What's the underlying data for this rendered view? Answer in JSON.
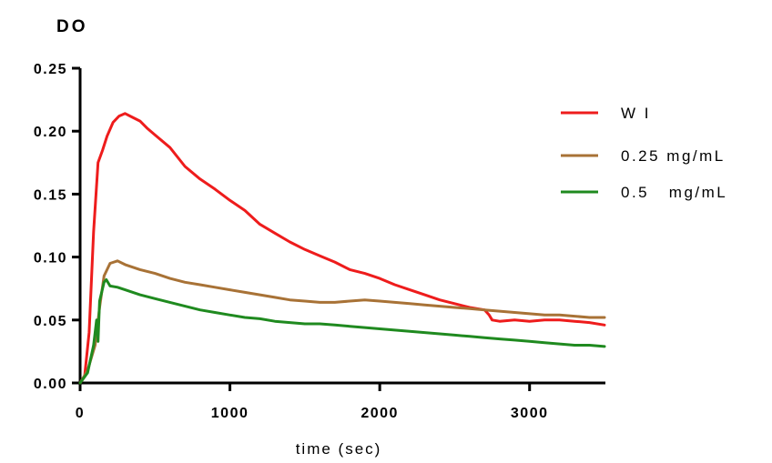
{
  "chart_data": {
    "type": "line",
    "title": "",
    "ylabel": "DO",
    "xlabel": "time (sec)",
    "xlim": [
      0,
      3500
    ],
    "ylim": [
      0,
      0.25
    ],
    "xticks": [
      0,
      1000,
      2000,
      3000
    ],
    "xtick_labels": [
      "0",
      "1000",
      "2000",
      "3000"
    ],
    "yticks": [
      0,
      0.05,
      0.1,
      0.15,
      0.2,
      0.25
    ],
    "ytick_labels": [
      "0.00",
      "0.05",
      "0.10",
      "0.15",
      "0.20",
      "0.25"
    ],
    "grid": false,
    "legend_position": "top-right",
    "series": [
      {
        "name": "W I",
        "color": "#ee1c1c",
        "points": [
          [
            0,
            0
          ],
          [
            30,
            0.005
          ],
          [
            60,
            0.04
          ],
          [
            90,
            0.12
          ],
          [
            120,
            0.175
          ],
          [
            150,
            0.185
          ],
          [
            180,
            0.196
          ],
          [
            220,
            0.207
          ],
          [
            260,
            0.212
          ],
          [
            300,
            0.214
          ],
          [
            350,
            0.211
          ],
          [
            400,
            0.208
          ],
          [
            450,
            0.202
          ],
          [
            500,
            0.197
          ],
          [
            600,
            0.187
          ],
          [
            700,
            0.172
          ],
          [
            800,
            0.162
          ],
          [
            900,
            0.154
          ],
          [
            1000,
            0.145
          ],
          [
            1100,
            0.137
          ],
          [
            1200,
            0.126
          ],
          [
            1300,
            0.119
          ],
          [
            1400,
            0.112
          ],
          [
            1500,
            0.106
          ],
          [
            1600,
            0.101
          ],
          [
            1700,
            0.096
          ],
          [
            1800,
            0.09
          ],
          [
            1900,
            0.087
          ],
          [
            2000,
            0.083
          ],
          [
            2100,
            0.078
          ],
          [
            2200,
            0.074
          ],
          [
            2300,
            0.07
          ],
          [
            2400,
            0.066
          ],
          [
            2500,
            0.063
          ],
          [
            2600,
            0.06
          ],
          [
            2700,
            0.058
          ],
          [
            2730,
            0.054
          ],
          [
            2750,
            0.05
          ],
          [
            2800,
            0.049
          ],
          [
            2900,
            0.05
          ],
          [
            3000,
            0.049
          ],
          [
            3100,
            0.05
          ],
          [
            3200,
            0.05
          ],
          [
            3300,
            0.049
          ],
          [
            3400,
            0.048
          ],
          [
            3500,
            0.046
          ]
        ]
      },
      {
        "name": "0.25 mg/mL",
        "color": "#a87236",
        "points": [
          [
            0,
            0
          ],
          [
            50,
            0.01
          ],
          [
            100,
            0.03
          ],
          [
            130,
            0.06
          ],
          [
            160,
            0.085
          ],
          [
            200,
            0.095
          ],
          [
            250,
            0.097
          ],
          [
            300,
            0.094
          ],
          [
            400,
            0.09
          ],
          [
            500,
            0.087
          ],
          [
            600,
            0.083
          ],
          [
            700,
            0.08
          ],
          [
            800,
            0.078
          ],
          [
            900,
            0.076
          ],
          [
            1000,
            0.074
          ],
          [
            1100,
            0.072
          ],
          [
            1200,
            0.07
          ],
          [
            1300,
            0.068
          ],
          [
            1400,
            0.066
          ],
          [
            1500,
            0.065
          ],
          [
            1600,
            0.064
          ],
          [
            1700,
            0.064
          ],
          [
            1800,
            0.065
          ],
          [
            1900,
            0.066
          ],
          [
            2000,
            0.065
          ],
          [
            2100,
            0.064
          ],
          [
            2200,
            0.063
          ],
          [
            2300,
            0.062
          ],
          [
            2400,
            0.061
          ],
          [
            2500,
            0.06
          ],
          [
            2600,
            0.059
          ],
          [
            2700,
            0.058
          ],
          [
            2800,
            0.057
          ],
          [
            2900,
            0.056
          ],
          [
            3000,
            0.055
          ],
          [
            3100,
            0.054
          ],
          [
            3200,
            0.054
          ],
          [
            3300,
            0.053
          ],
          [
            3400,
            0.052
          ],
          [
            3500,
            0.052
          ]
        ]
      },
      {
        "name": "0.5   mg/mL",
        "color": "#1f8a1f",
        "points": [
          [
            0,
            0
          ],
          [
            50,
            0.008
          ],
          [
            90,
            0.03
          ],
          [
            110,
            0.05
          ],
          [
            120,
            0.033
          ],
          [
            130,
            0.065
          ],
          [
            160,
            0.08
          ],
          [
            175,
            0.082
          ],
          [
            200,
            0.077
          ],
          [
            250,
            0.076
          ],
          [
            300,
            0.074
          ],
          [
            400,
            0.07
          ],
          [
            500,
            0.067
          ],
          [
            600,
            0.064
          ],
          [
            700,
            0.061
          ],
          [
            800,
            0.058
          ],
          [
            900,
            0.056
          ],
          [
            1000,
            0.054
          ],
          [
            1100,
            0.052
          ],
          [
            1200,
            0.051
          ],
          [
            1300,
            0.049
          ],
          [
            1400,
            0.048
          ],
          [
            1500,
            0.047
          ],
          [
            1600,
            0.047
          ],
          [
            1700,
            0.046
          ],
          [
            1800,
            0.045
          ],
          [
            1900,
            0.044
          ],
          [
            2000,
            0.043
          ],
          [
            2100,
            0.042
          ],
          [
            2200,
            0.041
          ],
          [
            2300,
            0.04
          ],
          [
            2400,
            0.039
          ],
          [
            2500,
            0.038
          ],
          [
            2600,
            0.037
          ],
          [
            2700,
            0.036
          ],
          [
            2800,
            0.035
          ],
          [
            2900,
            0.034
          ],
          [
            3000,
            0.033
          ],
          [
            3100,
            0.032
          ],
          [
            3200,
            0.031
          ],
          [
            3300,
            0.03
          ],
          [
            3400,
            0.03
          ],
          [
            3500,
            0.029
          ]
        ]
      }
    ]
  }
}
